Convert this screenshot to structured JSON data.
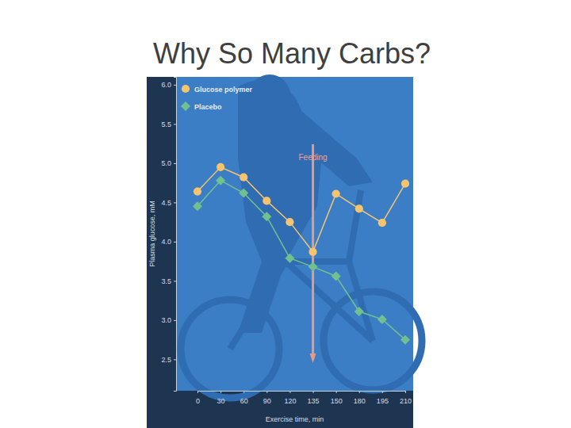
{
  "chart_data": {
    "type": "line",
    "title": "Why So Many Carbs?",
    "x_label": "Exercise time, min",
    "y_label": "Plasma glucose, mM",
    "categories": [
      0,
      30,
      60,
      90,
      120,
      135,
      150,
      180,
      195,
      210
    ],
    "series": [
      {
        "name": "Glucose polymer",
        "color": "#f6c46e",
        "marker": "circle",
        "values": [
          4.64,
          4.95,
          4.82,
          4.52,
          4.25,
          3.87,
          4.61,
          4.42,
          4.24,
          4.74
        ]
      },
      {
        "name": "Placebo",
        "color": "#72c08f",
        "marker": "diamond",
        "values": [
          4.45,
          4.78,
          4.62,
          4.32,
          3.79,
          3.68,
          3.56,
          3.11,
          3.01,
          2.75
        ]
      }
    ],
    "annotations": [
      {
        "text": "Feeding",
        "x": 135
      }
    ],
    "ylim": [
      2.1,
      6.1
    ],
    "yticks": [
      {
        "value": 2.5,
        "label": "2.5"
      },
      {
        "value": 3.0,
        "label": "3.0"
      },
      {
        "value": 3.5,
        "label": "3.5"
      },
      {
        "value": 4.0,
        "label": "4.0"
      },
      {
        "value": 4.5,
        "label": "4.5"
      },
      {
        "value": 5.0,
        "label": "5.0"
      },
      {
        "value": 5.5,
        "label": "5.5"
      },
      {
        "value": 6.0,
        "label": "6.0"
      }
    ],
    "legend": "upper left",
    "grid": false
  }
}
